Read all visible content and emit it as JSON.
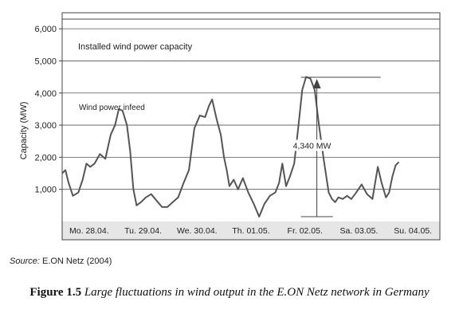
{
  "chart_data": {
    "type": "line",
    "title": "",
    "xlabel": "",
    "ylabel": "Capacity (MW)",
    "ylim": [
      0,
      6500
    ],
    "grid": true,
    "yticks": [
      1000,
      2000,
      3000,
      4000,
      5000,
      6000
    ],
    "ytick_labels": [
      "1,000",
      "2,000",
      "3,000",
      "4,000",
      "5,000",
      "6,000"
    ],
    "categories": [
      "Mo. 28.04.",
      "Tu. 29.04.",
      "We. 30.04.",
      "Th. 01.05.",
      "Fr. 02.05.",
      "Sa. 03.05.",
      "Su. 04.05."
    ],
    "reference_line": {
      "label": "Installed wind power capacity",
      "value": 6300
    },
    "series": [
      {
        "name": "Wind power infeed",
        "x": [
          0.0,
          0.06,
          0.12,
          0.2,
          0.3,
          0.38,
          0.45,
          0.52,
          0.6,
          0.7,
          0.8,
          0.9,
          0.98,
          1.05,
          1.12,
          1.2,
          1.26,
          1.32,
          1.38,
          1.46,
          1.55,
          1.65,
          1.75,
          1.85,
          1.95,
          2.05,
          2.15,
          2.25,
          2.35,
          2.45,
          2.55,
          2.65,
          2.72,
          2.78,
          2.86,
          2.94,
          3.0,
          3.05,
          3.1,
          3.18,
          3.26,
          3.35,
          3.45,
          3.55,
          3.65,
          3.75,
          3.85,
          3.95,
          4.02,
          4.08,
          4.15,
          4.22,
          4.3,
          4.38,
          4.45,
          4.52,
          4.6,
          4.68,
          4.76,
          4.85,
          4.94,
          5.0,
          5.06,
          5.12,
          5.2,
          5.28,
          5.36,
          5.45,
          5.55,
          5.65,
          5.75,
          5.85,
          5.92,
          6.0,
          6.06,
          6.12,
          6.18,
          6.24
        ],
        "values": [
          1500,
          1600,
          1200,
          800,
          900,
          1300,
          1800,
          1700,
          1800,
          2100,
          1950,
          2700,
          3000,
          3500,
          3450,
          3000,
          2200,
          1000,
          500,
          600,
          750,
          850,
          650,
          450,
          450,
          600,
          750,
          1200,
          1600,
          2900,
          3300,
          3250,
          3600,
          3800,
          3200,
          2700,
          2000,
          1600,
          1100,
          1300,
          1000,
          1350,
          900,
          550,
          150,
          550,
          800,
          900,
          1200,
          1800,
          1100,
          1400,
          1800,
          3000,
          4100,
          4500,
          4450,
          4100,
          3000,
          1900,
          900,
          700,
          600,
          750,
          700,
          800,
          700,
          900,
          1150,
          850,
          700,
          1700,
          1200,
          750,
          900,
          1400,
          1750,
          1850
        ]
      }
    ],
    "annotations": [
      {
        "text": "4,340 MW",
        "from": 150,
        "to": 4490,
        "x": 4.72
      }
    ]
  },
  "source": {
    "label": "Source:",
    "text": "E.ON Netz (2004)"
  },
  "caption": {
    "number": "Figure 1.5",
    "text": "Large fluctuations in wind output in the E.ON Netz network in Germany"
  }
}
